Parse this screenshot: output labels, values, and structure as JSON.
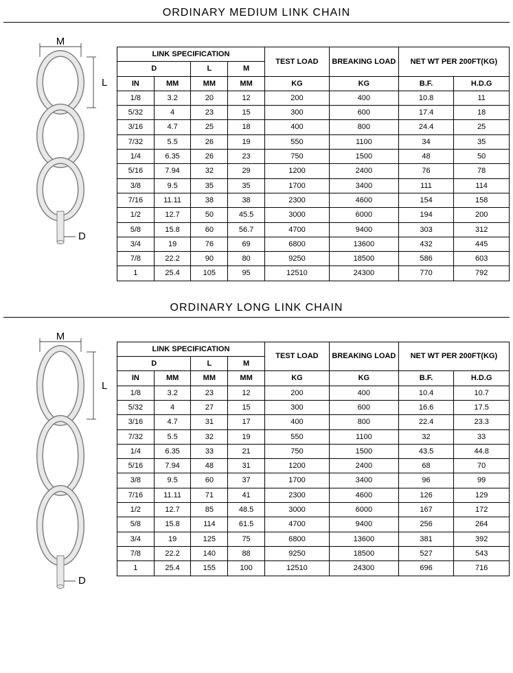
{
  "section1": {
    "title": "ORDINARY MEDIUM LINK CHAIN",
    "dim_labels": {
      "M": "M",
      "L": "L",
      "D": "D"
    },
    "chain_link_ratio": 1.4,
    "header": {
      "link_spec": "LINK SPECIFICATION",
      "test_load": "TEST LOAD",
      "breaking_load": "BREAKING LOAD",
      "net_wt": "NET WT PER 200FT(KG)",
      "D": "D",
      "L": "L",
      "M": "M",
      "IN": "IN",
      "MM": "MM",
      "KG": "KG",
      "BF": "B.F.",
      "HDG": "H.D.G"
    },
    "rows": [
      [
        "1/8",
        "3.2",
        "20",
        "12",
        "200",
        "400",
        "10.8",
        "11"
      ],
      [
        "5/32",
        "4",
        "23",
        "15",
        "300",
        "600",
        "17.4",
        "18"
      ],
      [
        "3/16",
        "4.7",
        "25",
        "18",
        "400",
        "800",
        "24.4",
        "25"
      ],
      [
        "7/32",
        "5.5",
        "26",
        "19",
        "550",
        "1100",
        "34",
        "35"
      ],
      [
        "1/4",
        "6.35",
        "26",
        "23",
        "750",
        "1500",
        "48",
        "50"
      ],
      [
        "5/16",
        "7.94",
        "32",
        "29",
        "1200",
        "2400",
        "76",
        "78"
      ],
      [
        "3/8",
        "9.5",
        "35",
        "35",
        "1700",
        "3400",
        "111",
        "114"
      ],
      [
        "7/16",
        "11.11",
        "38",
        "38",
        "2300",
        "4600",
        "154",
        "158"
      ],
      [
        "1/2",
        "12.7",
        "50",
        "45.5",
        "3000",
        "6000",
        "194",
        "200"
      ],
      [
        "5/8",
        "15.8",
        "60",
        "56.7",
        "4700",
        "9400",
        "303",
        "312"
      ],
      [
        "3/4",
        "19",
        "76",
        "69",
        "6800",
        "13600",
        "432",
        "445"
      ],
      [
        "7/8",
        "22.2",
        "90",
        "80",
        "9250",
        "18500",
        "586",
        "603"
      ],
      [
        "1",
        "25.4",
        "105",
        "95",
        "12510",
        "24300",
        "770",
        "792"
      ]
    ]
  },
  "section2": {
    "title": "ORDINARY LONG LINK CHAIN",
    "dim_labels": {
      "M": "M",
      "L": "L",
      "D": "D"
    },
    "chain_link_ratio": 1.8,
    "header": {
      "link_spec": "LINK SPECIFICATION",
      "test_load": "TEST LOAD",
      "breaking_load": "BREAKING LOAD",
      "net_wt": "NET WT PER 200FT(KG)",
      "D": "D",
      "L": "L",
      "M": "M",
      "IN": "IN",
      "MM": "MM",
      "KG": "KG",
      "BF": "B.F.",
      "HDG": "H.D.G"
    },
    "rows": [
      [
        "1/8",
        "3.2",
        "23",
        "12",
        "200",
        "400",
        "10.4",
        "10.7"
      ],
      [
        "5/32",
        "4",
        "27",
        "15",
        "300",
        "600",
        "16.6",
        "17.5"
      ],
      [
        "3/16",
        "4.7",
        "31",
        "17",
        "400",
        "800",
        "22.4",
        "23.3"
      ],
      [
        "7/32",
        "5.5",
        "32",
        "19",
        "550",
        "1100",
        "32",
        "33"
      ],
      [
        "1/4",
        "6.35",
        "33",
        "21",
        "750",
        "1500",
        "43.5",
        "44.8"
      ],
      [
        "5/16",
        "7.94",
        "48",
        "31",
        "1200",
        "2400",
        "68",
        "70"
      ],
      [
        "3/8",
        "9.5",
        "60",
        "37",
        "1700",
        "3400",
        "96",
        "99"
      ],
      [
        "7/16",
        "11.11",
        "71",
        "41",
        "2300",
        "4600",
        "126",
        "129"
      ],
      [
        "1/2",
        "12.7",
        "85",
        "48.5",
        "3000",
        "6000",
        "167",
        "172"
      ],
      [
        "5/8",
        "15.8",
        "114",
        "61.5",
        "4700",
        "9400",
        "256",
        "264"
      ],
      [
        "3/4",
        "19",
        "125",
        "75",
        "6800",
        "13600",
        "381",
        "392"
      ],
      [
        "7/8",
        "22.2",
        "140",
        "88",
        "9250",
        "18500",
        "527",
        "543"
      ],
      [
        "1",
        "25.4",
        "155",
        "100",
        "12510",
        "24300",
        "696",
        "716"
      ]
    ]
  },
  "style": {
    "background": "#ffffff",
    "border_color": "#000000",
    "text_color": "#000000",
    "title_fontsize": 16,
    "table_fontsize": 11,
    "chain_fill": "#e8e8e8",
    "chain_stroke": "#808080",
    "label_font": "15px Arial"
  },
  "col_widths_pct": [
    8,
    8,
    8,
    8,
    14,
    14,
    20,
    20
  ]
}
